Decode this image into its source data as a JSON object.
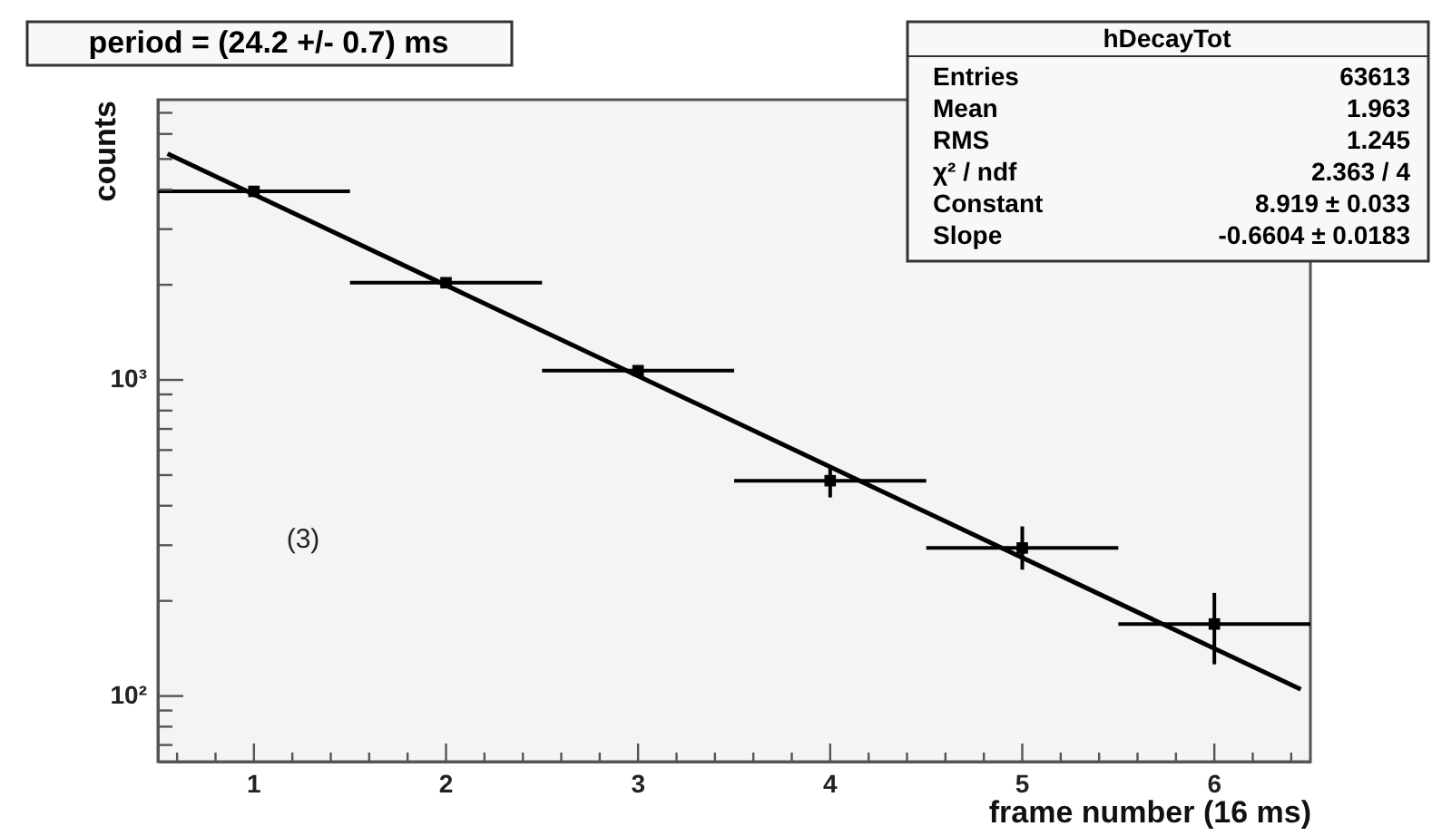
{
  "chart_data": {
    "type": "scatter",
    "xlabel": "frame number (16 ms)",
    "ylabel": "counts",
    "log": "y",
    "grid": false,
    "marker": "square",
    "xlim": [
      0.5,
      6.5
    ],
    "ylim": [
      62,
      7700
    ],
    "xticks": [
      {
        "value": 0.6,
        "label": null
      },
      {
        "value": 0.8,
        "label": null
      },
      1,
      {
        "value": 1.2,
        "label": null
      },
      {
        "value": 1.4,
        "label": null
      },
      {
        "value": 1.6,
        "label": null
      },
      {
        "value": 1.8,
        "label": null
      },
      2,
      {
        "value": 2.2,
        "label": null
      },
      {
        "value": 2.4,
        "label": null
      },
      {
        "value": 2.6,
        "label": null
      },
      {
        "value": 2.8,
        "label": null
      },
      3,
      {
        "value": 3.2,
        "label": null
      },
      {
        "value": 3.4,
        "label": null
      },
      {
        "value": 3.6,
        "label": null
      },
      {
        "value": 3.8,
        "label": null
      },
      4,
      {
        "value": 4.2,
        "label": null
      },
      {
        "value": 4.4,
        "label": null
      },
      {
        "value": 4.6,
        "label": null
      },
      {
        "value": 4.8,
        "label": null
      },
      5,
      {
        "value": 5.2,
        "label": null
      },
      {
        "value": 5.4,
        "label": null
      },
      {
        "value": 5.6,
        "label": null
      },
      {
        "value": 5.8,
        "label": null
      },
      6,
      {
        "value": 6.2,
        "label": null
      },
      {
        "value": 6.4,
        "label": null
      }
    ],
    "yticks": [
      {
        "value": 70,
        "label": null
      },
      {
        "value": 80,
        "label": null
      },
      {
        "value": 90,
        "label": null
      },
      {
        "value": 100,
        "label": "10²"
      },
      {
        "value": 200,
        "label": null
      },
      {
        "value": 300,
        "label": null
      },
      {
        "value": 400,
        "label": null
      },
      {
        "value": 500,
        "label": null
      },
      {
        "value": 600,
        "label": null
      },
      {
        "value": 700,
        "label": null
      },
      {
        "value": 800,
        "label": null
      },
      {
        "value": 900,
        "label": null
      },
      {
        "value": 1000,
        "label": "10³"
      },
      {
        "value": 2000,
        "label": null
      },
      {
        "value": 3000,
        "label": null
      },
      {
        "value": 4000,
        "label": null
      },
      {
        "value": 5000,
        "label": null
      },
      {
        "value": 6000,
        "label": null
      },
      {
        "value": 7000,
        "label": null
      }
    ],
    "series": [
      {
        "color": "#000000",
        "x": [
          1,
          2,
          3,
          4,
          5,
          6
        ],
        "values": [
          3950,
          2030,
          1070,
          480,
          294,
          169
        ],
        "xerrors": [
          0.5,
          0.5,
          0.5,
          0.5,
          0.5,
          0.5
        ],
        "errors": [
          null,
          null,
          null,
          [
            425,
            525
          ],
          [
            251,
            344
          ],
          [
            126,
            212
          ]
        ]
      },
      {
        "type": "line",
        "color": "#000000",
        "line_style": "solid",
        "marker": "none",
        "x": [
          0.55,
          6.45
        ],
        "values": [
          5200,
          105
        ]
      }
    ],
    "annotations": [
      "period = (24.2 +/- 0.7) ms",
      "(3)",
      "hDecayTot",
      "Entries",
      "63613",
      "Mean",
      "1.963",
      "RMS",
      "1.245",
      "χ² / ndf",
      "2.363 / 4",
      "Constant",
      "8.919 ± 0.033",
      "Slope",
      "-0.6604 ± 0.0183"
    ]
  }
}
